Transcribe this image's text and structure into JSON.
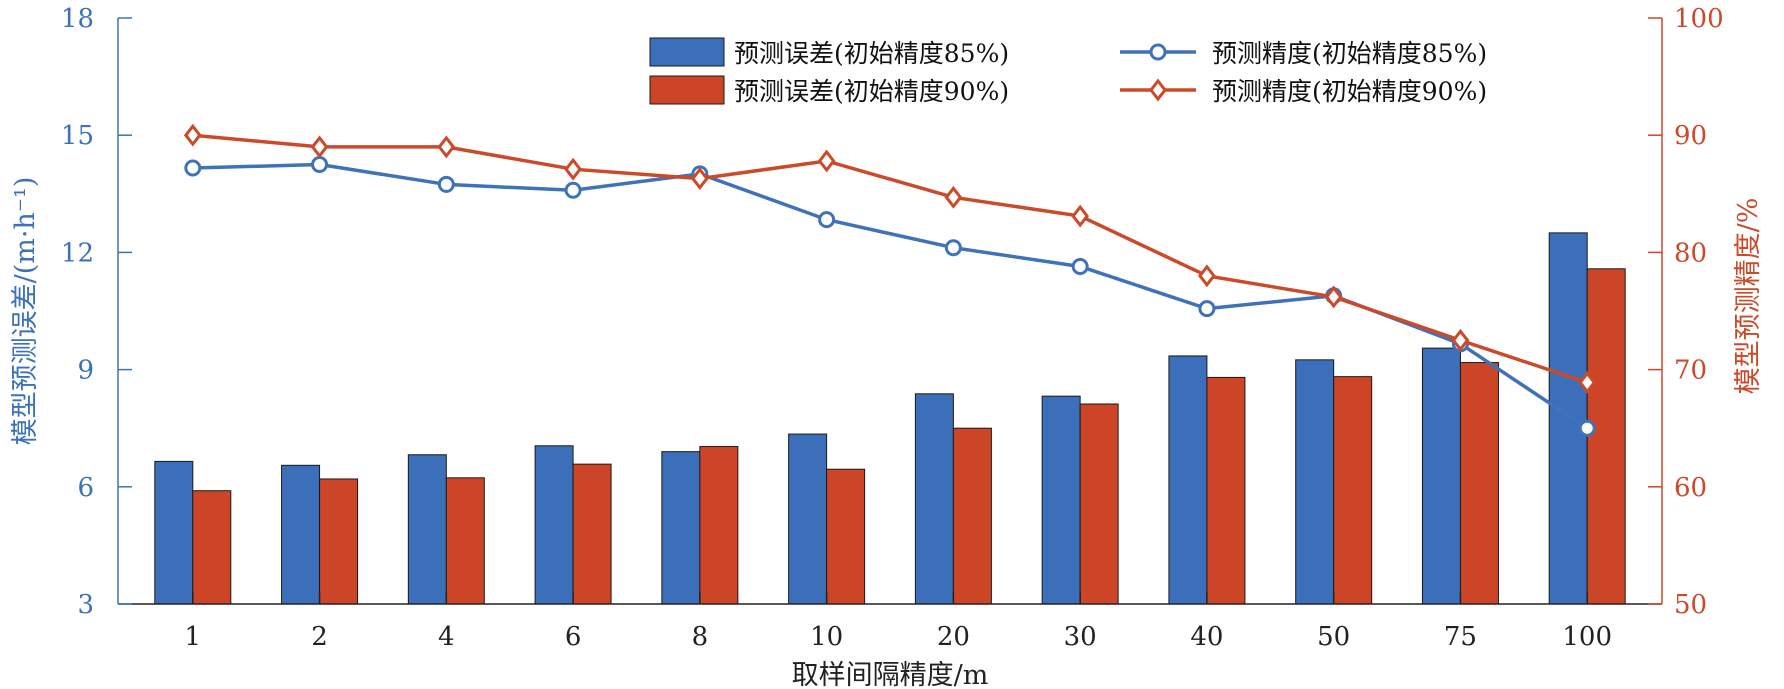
{
  "chart_data": {
    "type": "bar",
    "categories": [
      "1",
      "2",
      "4",
      "6",
      "8",
      "10",
      "20",
      "30",
      "40",
      "50",
      "75",
      "100"
    ],
    "xlabel": "取样间隔精度/m",
    "ylabel_left": "模型预测误差/(m·h⁻¹)",
    "ylabel_right": "模型预测精度/%",
    "ylim_left": [
      3,
      18
    ],
    "yticks_left": [
      3,
      6,
      9,
      12,
      15,
      18
    ],
    "ylim_right": [
      50,
      100
    ],
    "yticks_right": [
      50,
      60,
      70,
      80,
      90,
      100
    ],
    "grid": false,
    "legend_position": "top",
    "bar_series": [
      {
        "name": "预测误差(初始精度85%)",
        "color": "#3c6fba",
        "values": [
          6.65,
          6.55,
          6.82,
          7.05,
          6.9,
          7.35,
          8.38,
          8.32,
          9.35,
          9.25,
          9.55,
          12.5
        ]
      },
      {
        "name": "预测误差(初始精度90%)",
        "color": "#cc4526",
        "values": [
          5.9,
          6.2,
          6.23,
          6.58,
          7.03,
          6.45,
          7.5,
          8.12,
          8.8,
          8.82,
          9.18,
          11.58
        ]
      }
    ],
    "line_series": [
      {
        "name": "预测精度(初始精度85%)",
        "color": "#3f72b8",
        "marker": "circle",
        "values": [
          87.2,
          87.5,
          85.8,
          85.3,
          86.7,
          82.8,
          80.4,
          78.8,
          75.2,
          76.3,
          72.2,
          65.0
        ]
      },
      {
        "name": "预测精度(初始精度90%)",
        "color": "#cc4a2a",
        "marker": "diamond",
        "values": [
          90.0,
          89.0,
          89.0,
          87.1,
          86.3,
          87.8,
          84.7,
          83.1,
          78.0,
          76.2,
          72.5,
          68.9
        ]
      }
    ]
  }
}
